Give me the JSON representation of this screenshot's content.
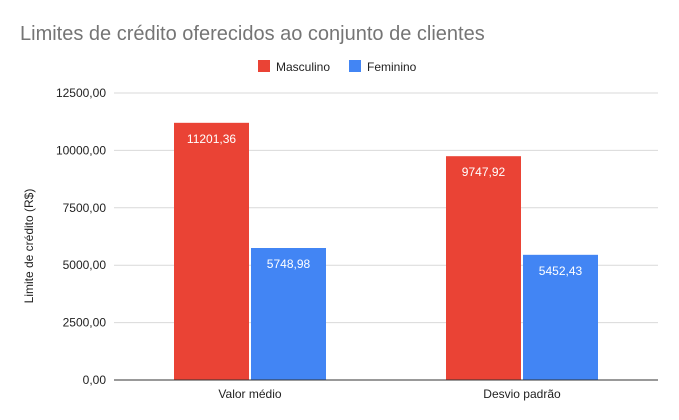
{
  "chart_data": {
    "type": "bar",
    "title": "Limites de crédito oferecidos ao conjunto de clientes",
    "xlabel": "",
    "ylabel": "Limite de crédito (R$)",
    "categories": [
      "Valor médio",
      "Desvio padrão"
    ],
    "series": [
      {
        "name": "Masculino",
        "values": [
          11201.36,
          9747.92
        ],
        "labels": [
          "11201,36",
          "9747,92"
        ]
      },
      {
        "name": "Feminino",
        "values": [
          5748.98,
          5452.43
        ],
        "labels": [
          "5748,98",
          "5452,43"
        ]
      }
    ],
    "ylim": [
      0,
      12500
    ],
    "yticks": [
      0,
      2500,
      5000,
      7500,
      10000,
      12500
    ],
    "ytick_labels": [
      "0,00",
      "2500,00",
      "5000,00",
      "7500,00",
      "10000,00",
      "12500,00"
    ],
    "grid": true,
    "legend_position": "top",
    "colors": {
      "Masculino": "#ea4335",
      "Feminino": "#4285f4"
    }
  }
}
